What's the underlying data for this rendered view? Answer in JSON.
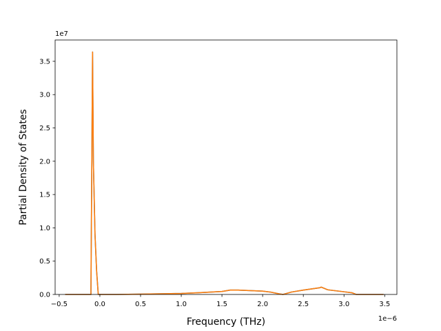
{
  "chart_data": {
    "type": "line",
    "xlabel": "Frequency (THz)",
    "ylabel": "Partial Density of States",
    "x_offset_label": "1e−6",
    "y_offset_label": "1e7",
    "xlim": [
      -0.55,
      3.65
    ],
    "ylim": [
      0,
      3.82
    ],
    "x_unit_multiplier": 1e-06,
    "y_unit_multiplier": 10000000.0,
    "xticks": [
      -0.5,
      0.0,
      0.5,
      1.0,
      1.5,
      2.0,
      2.5,
      3.0,
      3.5
    ],
    "xtick_labels": [
      "−0.5",
      "0.0",
      "0.5",
      "1.0",
      "1.5",
      "2.0",
      "2.5",
      "3.0",
      "3.5"
    ],
    "yticks": [
      0.0,
      0.5,
      1.0,
      1.5,
      2.0,
      2.5,
      3.0,
      3.5
    ],
    "ytick_labels": [
      "0.0",
      "0.5",
      "1.0",
      "1.5",
      "2.0",
      "2.5",
      "3.0",
      "3.5"
    ],
    "grid": false,
    "legend": "none",
    "series": [
      {
        "color": "#1f77b4",
        "x": [
          -0.42,
          -0.3,
          -0.2,
          -0.11,
          -0.1,
          -0.09,
          -0.08,
          -0.06,
          -0.04,
          -0.02,
          0.0,
          0.2,
          0.5,
          1.0,
          1.2,
          1.5,
          1.6,
          1.7,
          2.0,
          2.1,
          2.2,
          2.25,
          2.35,
          2.5,
          2.7,
          2.72,
          2.8,
          3.0,
          3.1,
          3.15,
          3.3,
          3.48
        ],
        "y": [
          0.0,
          0.0,
          0.0,
          0.0,
          1.8,
          3.64,
          2.0,
          0.9,
          0.35,
          0.0,
          0.0,
          0.0,
          0.005,
          0.015,
          0.025,
          0.045,
          0.065,
          0.065,
          0.05,
          0.035,
          0.01,
          0.0,
          0.035,
          0.065,
          0.1,
          0.11,
          0.07,
          0.04,
          0.025,
          0.0,
          0.0,
          0.0
        ]
      },
      {
        "color": "#ff7f0e",
        "x": [
          -0.42,
          -0.3,
          -0.2,
          -0.11,
          -0.1,
          -0.09,
          -0.08,
          -0.06,
          -0.04,
          -0.02,
          0.0,
          0.2,
          0.5,
          1.0,
          1.2,
          1.5,
          1.6,
          1.7,
          2.0,
          2.1,
          2.2,
          2.25,
          2.35,
          2.5,
          2.7,
          2.72,
          2.8,
          3.0,
          3.1,
          3.15,
          3.3,
          3.48
        ],
        "y": [
          0.0,
          0.0,
          0.0,
          0.0,
          1.8,
          3.64,
          2.0,
          0.9,
          0.35,
          0.0,
          0.0,
          0.0,
          0.005,
          0.015,
          0.025,
          0.045,
          0.065,
          0.065,
          0.05,
          0.035,
          0.01,
          0.0,
          0.035,
          0.065,
          0.1,
          0.11,
          0.07,
          0.04,
          0.025,
          0.0,
          0.0,
          0.0
        ]
      }
    ]
  }
}
